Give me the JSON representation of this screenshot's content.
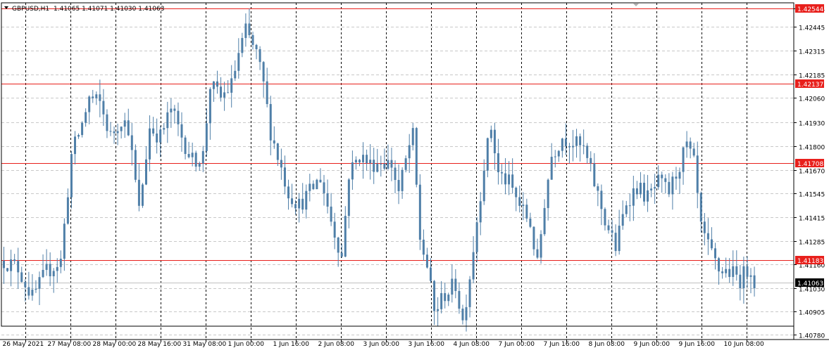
{
  "header": {
    "symbol": "GBPUSD,H1",
    "ohlc": "1.41065 1.41071 1.41030 1.41063"
  },
  "colors": {
    "candle": "#4f7fa8",
    "level_line": "#e8201c",
    "level_label_bg": "#e8201c",
    "current_label_bg": "#000000",
    "grid": "#c8c8c8",
    "vgrid": "#000000",
    "axis_text": "#000000"
  },
  "chart_data": {
    "type": "candlestick",
    "title": "GBPUSD,H1",
    "grid": true,
    "ylim": [
      1.4071,
      1.4259
    ],
    "y_ticks": [
      "1.42544",
      "1.42445",
      "1.42315",
      "1.42185",
      "1.42060",
      "1.41930",
      "1.41800",
      "1.41670",
      "1.41545",
      "1.41415",
      "1.41285",
      "1.41160",
      "1.41030",
      "1.40905",
      "1.40780"
    ],
    "x_ticks": [
      "26 May 2021",
      "27 May 08:00",
      "28 May 00:00",
      "28 May 16:00",
      "31 May 08:00",
      "1 Jun 00:00",
      "1 Jun 16:00",
      "2 Jun 08:00",
      "3 Jun 00:00",
      "3 Jun 16:00",
      "4 Jun 08:00",
      "7 Jun 00:00",
      "7 Jun 16:00",
      "8 Jun 08:00",
      "9 Jun 00:00",
      "9 Jun 16:00",
      "10 Jun 08:00"
    ],
    "levels": [
      {
        "value": 1.42544,
        "label": "1.42544"
      },
      {
        "value": 1.42137,
        "label": "1.42137"
      },
      {
        "value": 1.41708,
        "label": "1.41708"
      },
      {
        "value": 1.41183,
        "label": "1.41183"
      }
    ],
    "current_price": {
      "value": 1.41063,
      "label": "1.41063"
    },
    "close_path": [
      [
        0,
        1.4118
      ],
      [
        4,
        1.4114
      ],
      [
        8,
        1.4098
      ],
      [
        12,
        1.4112
      ],
      [
        16,
        1.4118
      ],
      [
        19,
        1.4175
      ],
      [
        22,
        1.4192
      ],
      [
        24,
        1.4206
      ],
      [
        27,
        1.4203
      ],
      [
        30,
        1.4185
      ],
      [
        33,
        1.4195
      ],
      [
        35,
        1.419
      ],
      [
        38,
        1.4145
      ],
      [
        41,
        1.419
      ],
      [
        44,
        1.4185
      ],
      [
        47,
        1.42
      ],
      [
        50,
        1.4185
      ],
      [
        53,
        1.4172
      ],
      [
        56,
        1.4175
      ],
      [
        58,
        1.4213
      ],
      [
        61,
        1.4206
      ],
      [
        64,
        1.4213
      ],
      [
        66,
        1.423
      ],
      [
        68,
        1.4242
      ],
      [
        71,
        1.423
      ],
      [
        73,
        1.4213
      ],
      [
        75,
        1.4188
      ],
      [
        78,
        1.4168
      ],
      [
        80,
        1.4155
      ],
      [
        83,
        1.4148
      ],
      [
        86,
        1.4155
      ],
      [
        89,
        1.4163
      ],
      [
        92,
        1.414
      ],
      [
        95,
        1.412
      ],
      [
        97,
        1.4165
      ],
      [
        100,
        1.4175
      ],
      [
        103,
        1.417
      ],
      [
        106,
        1.4172
      ],
      [
        109,
        1.417
      ],
      [
        111,
        1.4155
      ],
      [
        114,
        1.418
      ],
      [
        115,
        1.4185
      ],
      [
        117,
        1.413
      ],
      [
        119,
        1.4115
      ],
      [
        121,
        1.409
      ],
      [
        124,
        1.41
      ],
      [
        127,
        1.4105
      ],
      [
        129,
        1.4085
      ],
      [
        131,
        1.411
      ],
      [
        133,
        1.414
      ],
      [
        135,
        1.417
      ],
      [
        137,
        1.419
      ],
      [
        139,
        1.4165
      ],
      [
        142,
        1.416
      ],
      [
        145,
        1.4148
      ],
      [
        148,
        1.4138
      ],
      [
        150,
        1.4115
      ],
      [
        152,
        1.415
      ],
      [
        154,
        1.4175
      ],
      [
        157,
        1.4185
      ],
      [
        160,
        1.4182
      ],
      [
        163,
        1.4178
      ],
      [
        166,
        1.416
      ],
      [
        169,
        1.414
      ],
      [
        172,
        1.4125
      ],
      [
        175,
        1.415
      ],
      [
        178,
        1.4158
      ],
      [
        181,
        1.4152
      ],
      [
        184,
        1.416
      ],
      [
        187,
        1.4155
      ],
      [
        190,
        1.417
      ],
      [
        192,
        1.418
      ],
      [
        194,
        1.417
      ],
      [
        196,
        1.4135
      ],
      [
        198,
        1.4125
      ],
      [
        201,
        1.4113
      ],
      [
        204,
        1.4112
      ],
      [
        207,
        1.4108
      ],
      [
        210,
        1.4115
      ],
      [
        211,
        1.4106
      ]
    ]
  }
}
